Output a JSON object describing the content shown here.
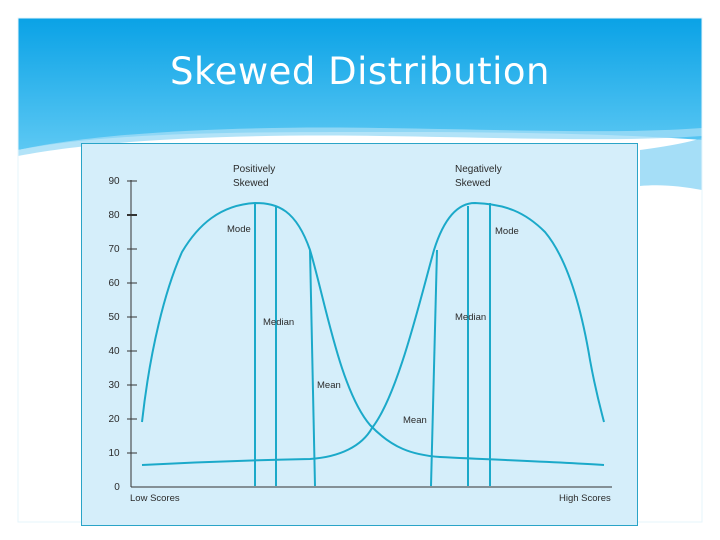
{
  "slide": {
    "title": "Skewed Distribution",
    "colors": {
      "header_top": "#0aa2e6",
      "header_bottom": "#5cc8f3",
      "panel_bg": "#d5eefa",
      "curve": "#1ba9c9",
      "axis": "#333333"
    }
  },
  "figure": {
    "y_ticks": [
      "90",
      "80",
      "70",
      "60",
      "50",
      "40",
      "30",
      "20",
      "10",
      "0"
    ],
    "x_low_label": "Low Scores",
    "x_high_label": "High Scores",
    "positive": {
      "title_line1": "Positively",
      "title_line2": "Skewed",
      "mode_label": "Mode",
      "median_label": "Median",
      "mean_label": "Mean"
    },
    "negative": {
      "title_line1": "Negatively",
      "title_line2": "Skewed",
      "mode_label": "Mode",
      "median_label": "Median",
      "mean_label": "Mean"
    }
  }
}
